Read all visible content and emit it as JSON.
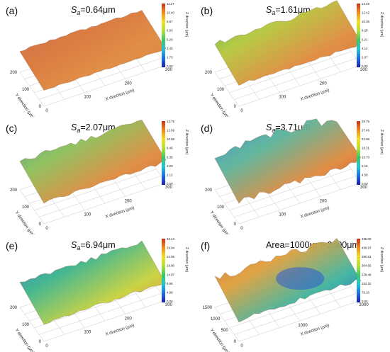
{
  "colorbar_colors": [
    "#1e1ea8",
    "#1e6fe0",
    "#28c2d8",
    "#3cc864",
    "#b4e03c",
    "#f0e028",
    "#f08c1e",
    "#c83218"
  ],
  "colorbar_label": "Z direction (μm)",
  "x_axis_label": "X direction (μm)",
  "y_axis_label": "Y direction (μm)",
  "panels": [
    {
      "label": "(a)",
      "title_prefix": "S",
      "title_sub": "a",
      "title_suffix": "=0.64μm",
      "colorbar_ticks": [
        "11.27",
        "10.40",
        "8.67",
        "6.93",
        "5.20",
        "3.46",
        "1.73",
        "0.00"
      ],
      "x_ticks": [
        "0",
        "100",
        "200",
        "300"
      ],
      "y_ticks": [
        "0",
        "100",
        "200"
      ],
      "surface_colors": [
        "#c8643a",
        "#d8743a",
        "#e08a3e",
        "#cc6a32"
      ],
      "surface_shape": "flat"
    },
    {
      "label": "(b)",
      "title_prefix": "S",
      "title_sub": "a",
      "title_suffix": "=1.61μm",
      "colorbar_ticks": [
        "13.49",
        "12.42",
        "10.35",
        "8.28",
        "6.21",
        "4.14",
        "2.07",
        "0.00"
      ],
      "x_ticks": [
        "0",
        "100",
        "200",
        "300"
      ],
      "y_ticks": [
        "0",
        "100",
        "200"
      ],
      "surface_colors": [
        "#3cb45a",
        "#b4c83c",
        "#e08a3e",
        "#d06a32"
      ],
      "surface_shape": "rough"
    },
    {
      "label": "(c)",
      "title_prefix": "S",
      "title_sub": "a",
      "title_suffix": "=2.07μm",
      "colorbar_ticks": [
        "13.75",
        "12.69",
        "10.58",
        "8.46",
        "6.35",
        "4.23",
        "2.12",
        "0.00"
      ],
      "x_ticks": [
        "0",
        "100",
        "200",
        "300"
      ],
      "y_ticks": [
        "0",
        "100",
        "200"
      ],
      "surface_colors": [
        "#3c9a8a",
        "#8cc05a",
        "#e08a3e",
        "#c8602e"
      ],
      "surface_shape": "rough"
    },
    {
      "label": "(d)",
      "title_prefix": "S",
      "title_sub": "a",
      "title_suffix": "=3.71μm",
      "colorbar_ticks": [
        "29.76",
        "27.46",
        "22.88",
        "18.31",
        "13.73",
        "9.15",
        "4.58",
        "0.00"
      ],
      "x_ticks": [
        "0",
        "100",
        "200",
        "300"
      ],
      "y_ticks": [
        "0",
        "100",
        "200"
      ],
      "surface_colors": [
        "#3c8cc8",
        "#5ab49a",
        "#e08a3e",
        "#c8402a"
      ],
      "surface_shape": "hill"
    },
    {
      "label": "(e)",
      "title_prefix": "S",
      "title_sub": "a",
      "title_suffix": "=6.94μm",
      "colorbar_ticks": [
        "32.44",
        "29.94",
        "24.95",
        "19.96",
        "14.97",
        "9.98",
        "4.99",
        "0.00"
      ],
      "x_ticks": [
        "0",
        "100",
        "200",
        "300"
      ],
      "y_ticks": [
        "0",
        "100",
        "200"
      ],
      "surface_colors": [
        "#3c6ec8",
        "#3cb48c",
        "#c8d23c",
        "#e07a32"
      ],
      "surface_shape": "slope"
    },
    {
      "label": "(f)",
      "title_prefix": "Area=1000μm×2000μm",
      "title_sub": "",
      "title_suffix": "",
      "colorbar_ticks": [
        "495.09",
        "456.97",
        "380.81",
        "304.65",
        "228.48",
        "152.32",
        "76.16",
        "0.00"
      ],
      "x_ticks": [
        "0",
        "1000",
        "2000"
      ],
      "y_ticks": [
        "0",
        "500",
        "1000",
        "1500"
      ],
      "surface_colors": [
        "#d26a3a",
        "#e0a03c",
        "#3cb4a0",
        "#1e46c8"
      ],
      "surface_shape": "dish"
    }
  ]
}
